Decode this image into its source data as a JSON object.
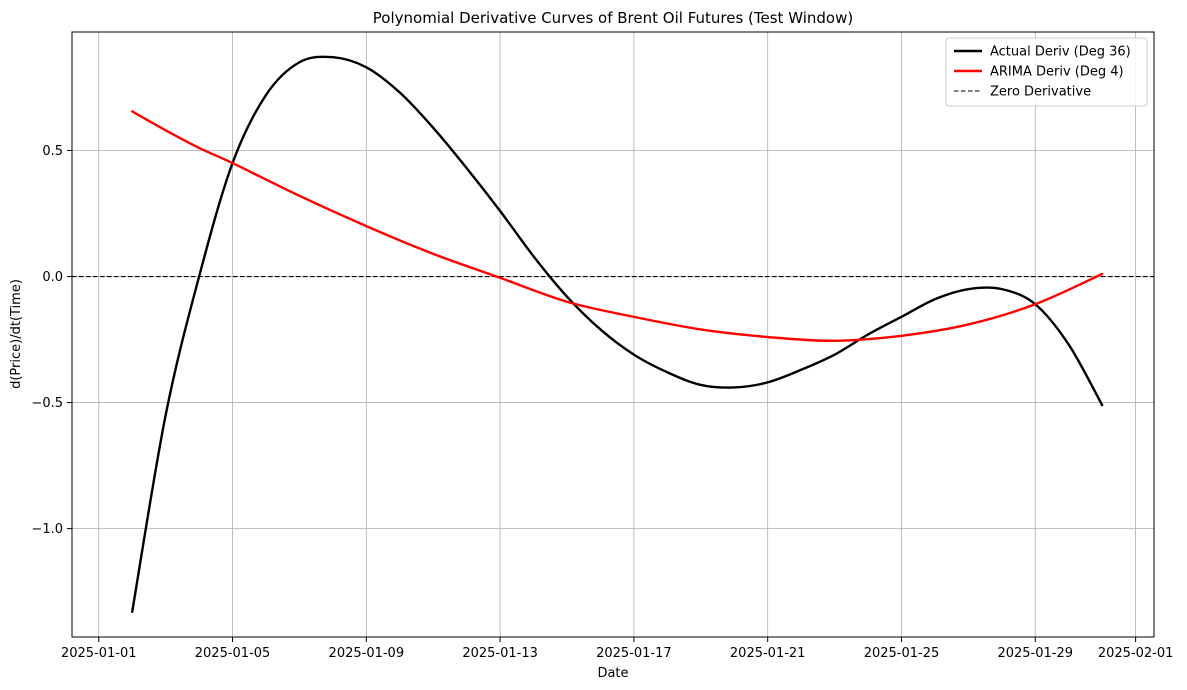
{
  "chart_data": {
    "type": "line",
    "title": "Polynomial Derivative Curves of Brent Oil Futures (Test Window)",
    "xlabel": "Date",
    "ylabel": "d(Price)/dt(Time)",
    "x_range": [
      "2025-01-01",
      "2025-02-01"
    ],
    "ylim": [
      -1.43,
      0.97
    ],
    "x_ticks": [
      "2025-01-01",
      "2025-01-05",
      "2025-01-09",
      "2025-01-13",
      "2025-01-17",
      "2025-01-21",
      "2025-01-25",
      "2025-01-29",
      "2025-02-01"
    ],
    "y_ticks": [
      {
        "value": 0.5,
        "label": "0.5"
      },
      {
        "value": 0.0,
        "label": "0.0"
      },
      {
        "value": -0.5,
        "label": "−0.5"
      },
      {
        "value": -1.0,
        "label": "−1.0"
      }
    ],
    "grid": true,
    "legend_position": "top-right",
    "series": [
      {
        "name": "Actual Deriv (Deg 36)",
        "color": "#000000",
        "style": "solid",
        "points": [
          [
            "2025-01-02",
            -1.33
          ],
          [
            "2025-01-03",
            -0.55
          ],
          [
            "2025-01-04",
            0.0
          ],
          [
            "2025-01-05",
            0.45
          ],
          [
            "2025-01-06",
            0.72
          ],
          [
            "2025-01-07",
            0.85
          ],
          [
            "2025-01-08",
            0.87
          ],
          [
            "2025-01-09",
            0.83
          ],
          [
            "2025-01-10",
            0.73
          ],
          [
            "2025-01-11",
            0.59
          ],
          [
            "2025-01-12",
            0.43
          ],
          [
            "2025-01-13",
            0.26
          ],
          [
            "2025-01-14",
            0.08
          ],
          [
            "2025-01-15",
            -0.08
          ],
          [
            "2025-01-16",
            -0.21
          ],
          [
            "2025-01-17",
            -0.31
          ],
          [
            "2025-01-18",
            -0.38
          ],
          [
            "2025-01-19",
            -0.43
          ],
          [
            "2025-01-20",
            -0.44
          ],
          [
            "2025-01-21",
            -0.42
          ],
          [
            "2025-01-22",
            -0.37
          ],
          [
            "2025-01-23",
            -0.31
          ],
          [
            "2025-01-24",
            -0.23
          ],
          [
            "2025-01-25",
            -0.16
          ],
          [
            "2025-01-26",
            -0.09
          ],
          [
            "2025-01-27",
            -0.05
          ],
          [
            "2025-01-28",
            -0.05
          ],
          [
            "2025-01-29",
            -0.11
          ],
          [
            "2025-01-30",
            -0.27
          ],
          [
            "2025-01-31",
            -0.51
          ]
        ]
      },
      {
        "name": "ARIMA Deriv (Deg 4)",
        "color": "#ff0000",
        "style": "solid",
        "points": [
          [
            "2025-01-02",
            0.655
          ],
          [
            "2025-01-03",
            0.58
          ],
          [
            "2025-01-04",
            0.51
          ],
          [
            "2025-01-05",
            0.45
          ],
          [
            "2025-01-07",
            0.32
          ],
          [
            "2025-01-09",
            0.2
          ],
          [
            "2025-01-11",
            0.09
          ],
          [
            "2025-01-13",
            -0.005
          ],
          [
            "2025-01-15",
            -0.1
          ],
          [
            "2025-01-17",
            -0.16
          ],
          [
            "2025-01-19",
            -0.21
          ],
          [
            "2025-01-21",
            -0.24
          ],
          [
            "2025-01-23",
            -0.255
          ],
          [
            "2025-01-25",
            -0.235
          ],
          [
            "2025-01-27",
            -0.19
          ],
          [
            "2025-01-29",
            -0.11
          ],
          [
            "2025-01-31",
            0.01
          ]
        ]
      },
      {
        "name": "Zero Derivative",
        "color": "#000000",
        "style": "dashed",
        "constant_y": 0.0
      }
    ]
  }
}
